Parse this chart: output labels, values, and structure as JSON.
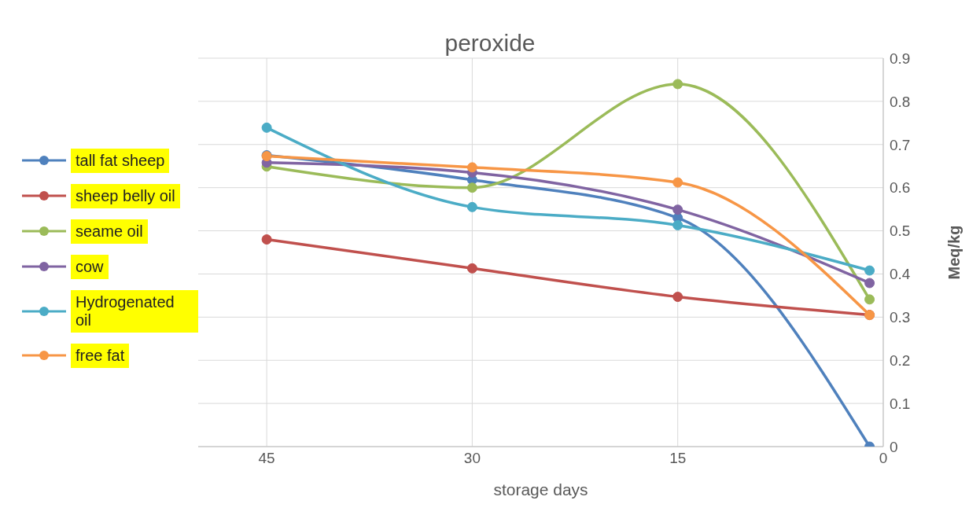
{
  "chart_data": {
    "type": "line",
    "title": "peroxide",
    "xlabel": "storage days",
    "ylabel": "Meq/kg",
    "x": [
      45,
      30,
      15,
      1
    ],
    "xlim": [
      50,
      0
    ],
    "xticks": [
      45,
      30,
      15,
      0
    ],
    "ylim": [
      0,
      0.9
    ],
    "yticks": [
      0,
      0.1,
      0.2,
      0.3,
      0.4,
      0.5,
      0.6,
      0.7,
      0.8,
      0.9
    ],
    "grid": true,
    "legend": "left",
    "marker": "circle",
    "line_style": "solid",
    "series": [
      {
        "name": "tall fat sheep",
        "color": "#4f81bd",
        "values": [
          0.675,
          0.618,
          0.53,
          0
        ]
      },
      {
        "name": "sheep belly oil",
        "color": "#c0504d",
        "values": [
          0.48,
          0.413,
          0.347,
          0.305
        ]
      },
      {
        "name": "seame oil",
        "color": "#9bbb59",
        "values": [
          0.649,
          0.6,
          0.84,
          0.341
        ]
      },
      {
        "name": "cow",
        "color": "#8064a2",
        "values": [
          0.658,
          0.635,
          0.549,
          0.379
        ]
      },
      {
        "name": "Hydrogenated oil",
        "color": "#4bacc6",
        "values": [
          0.739,
          0.555,
          0.513,
          0.408
        ]
      },
      {
        "name": "free fat",
        "color": "#f79646",
        "values": [
          0.673,
          0.647,
          0.612,
          0.305
        ]
      }
    ]
  }
}
